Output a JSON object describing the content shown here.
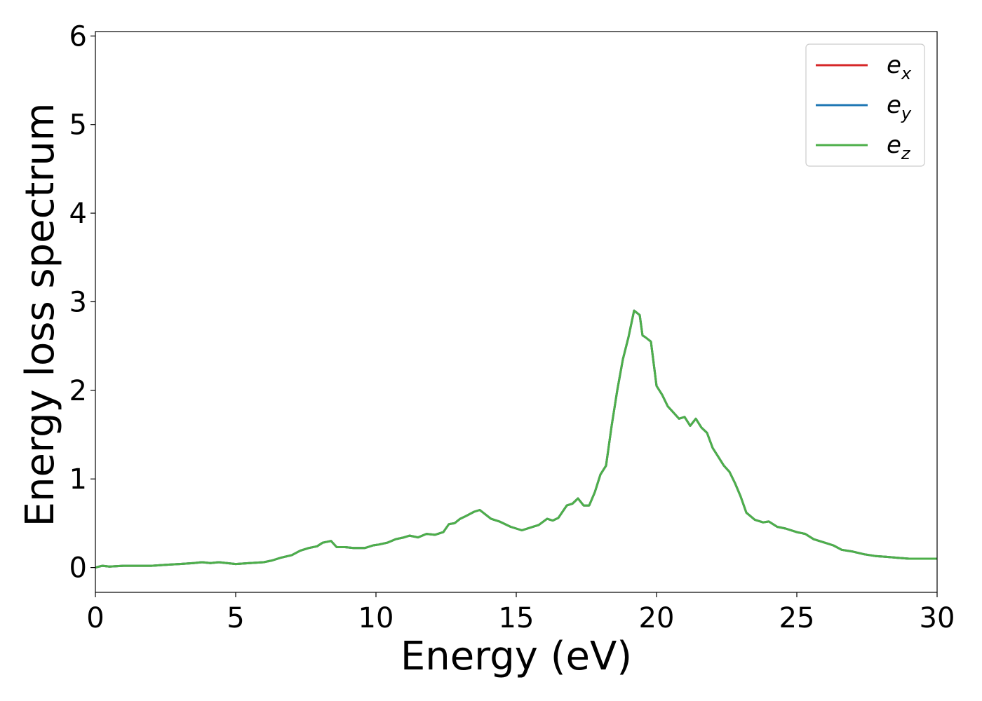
{
  "chart_data": {
    "type": "line",
    "xlabel": "Energy (eV)",
    "ylabel": "Energy loss spectrum",
    "xlim": [
      0,
      30
    ],
    "ylim": [
      -0.28,
      6.05
    ],
    "xticks": [
      0,
      5,
      10,
      15,
      20,
      25,
      30
    ],
    "xtick_labels": [
      "0",
      "5",
      "10",
      "15",
      "20",
      "25",
      "30"
    ],
    "yticks": [
      0,
      1,
      2,
      3,
      4,
      5,
      6
    ],
    "ytick_labels": [
      "0",
      "1",
      "2",
      "3",
      "4",
      "5",
      "6"
    ],
    "grid": false,
    "legend_position": "top-right",
    "x": [
      0,
      0.25,
      0.5,
      1,
      1.5,
      2,
      2.5,
      3,
      3.5,
      3.8,
      4.1,
      4.4,
      5,
      5.5,
      6,
      6.3,
      6.6,
      7,
      7.3,
      7.6,
      7.9,
      8.1,
      8.4,
      8.6,
      8.9,
      9.2,
      9.6,
      9.9,
      10.1,
      10.4,
      10.7,
      11,
      11.2,
      11.5,
      11.8,
      12.1,
      12.4,
      12.6,
      12.8,
      13,
      13.2,
      13.5,
      13.7,
      13.9,
      14.1,
      14.4,
      14.8,
      15.2,
      15.5,
      15.8,
      16.1,
      16.3,
      16.5,
      16.8,
      17,
      17.2,
      17.4,
      17.6,
      17.8,
      18,
      18.2,
      18.4,
      18.6,
      18.8,
      19,
      19.2,
      19.4,
      19.5,
      19.6,
      19.8,
      20,
      20.2,
      20.4,
      20.6,
      20.8,
      21,
      21.2,
      21.4,
      21.6,
      21.8,
      22,
      22.2,
      22.4,
      22.6,
      22.8,
      23,
      23.2,
      23.5,
      23.8,
      24,
      24.3,
      24.6,
      25,
      25.3,
      25.6,
      26,
      26.3,
      26.6,
      27,
      27.4,
      27.8,
      28.2,
      28.6,
      29,
      29.5,
      30
    ],
    "series": [
      {
        "name": "e_x",
        "color": "#d62728",
        "y": [
          0,
          0.02,
          0.01,
          0.02,
          0.02,
          0.02,
          0.03,
          0.04,
          0.05,
          0.06,
          0.05,
          0.06,
          0.04,
          0.05,
          0.06,
          0.08,
          0.11,
          0.14,
          0.19,
          0.22,
          0.24,
          0.28,
          0.3,
          0.23,
          0.23,
          0.22,
          0.22,
          0.25,
          0.26,
          0.28,
          0.32,
          0.34,
          0.36,
          0.34,
          0.38,
          0.37,
          0.4,
          0.49,
          0.5,
          0.55,
          0.58,
          0.63,
          0.65,
          0.6,
          0.55,
          0.52,
          0.46,
          0.42,
          0.45,
          0.48,
          0.55,
          0.53,
          0.56,
          0.7,
          0.72,
          0.78,
          0.7,
          0.7,
          0.85,
          1.05,
          1.15,
          1.6,
          2.0,
          2.35,
          2.6,
          2.9,
          2.85,
          2.62,
          2.6,
          2.55,
          2.05,
          1.95,
          1.82,
          1.75,
          1.68,
          1.7,
          1.6,
          1.68,
          1.58,
          1.52,
          1.35,
          1.25,
          1.15,
          1.08,
          0.95,
          0.8,
          0.62,
          0.54,
          0.51,
          0.52,
          0.46,
          0.44,
          0.4,
          0.38,
          0.32,
          0.28,
          0.25,
          0.2,
          0.18,
          0.15,
          0.13,
          0.12,
          0.11,
          0.1,
          0.1,
          0.1
        ]
      },
      {
        "name": "e_y",
        "color": "#1f77b4",
        "y": [
          0,
          0.02,
          0.01,
          0.02,
          0.02,
          0.02,
          0.03,
          0.04,
          0.05,
          0.06,
          0.05,
          0.06,
          0.04,
          0.05,
          0.06,
          0.08,
          0.11,
          0.14,
          0.19,
          0.22,
          0.24,
          0.28,
          0.3,
          0.23,
          0.23,
          0.22,
          0.22,
          0.25,
          0.26,
          0.28,
          0.32,
          0.34,
          0.36,
          0.34,
          0.38,
          0.37,
          0.4,
          0.49,
          0.5,
          0.55,
          0.58,
          0.63,
          0.65,
          0.6,
          0.55,
          0.52,
          0.46,
          0.42,
          0.45,
          0.48,
          0.55,
          0.53,
          0.56,
          0.7,
          0.72,
          0.78,
          0.7,
          0.7,
          0.85,
          1.05,
          1.15,
          1.6,
          2.0,
          2.35,
          2.6,
          2.9,
          2.85,
          2.62,
          2.6,
          2.55,
          2.05,
          1.95,
          1.82,
          1.75,
          1.68,
          1.7,
          1.6,
          1.68,
          1.58,
          1.52,
          1.35,
          1.25,
          1.15,
          1.08,
          0.95,
          0.8,
          0.62,
          0.54,
          0.51,
          0.52,
          0.46,
          0.44,
          0.4,
          0.38,
          0.32,
          0.28,
          0.25,
          0.2,
          0.18,
          0.15,
          0.13,
          0.12,
          0.11,
          0.1,
          0.1,
          0.1
        ]
      },
      {
        "name": "e_z",
        "color": "#4daf4a",
        "y": [
          0,
          0.02,
          0.01,
          0.02,
          0.02,
          0.02,
          0.03,
          0.04,
          0.05,
          0.06,
          0.05,
          0.06,
          0.04,
          0.05,
          0.06,
          0.08,
          0.11,
          0.14,
          0.19,
          0.22,
          0.24,
          0.28,
          0.3,
          0.23,
          0.23,
          0.22,
          0.22,
          0.25,
          0.26,
          0.28,
          0.32,
          0.34,
          0.36,
          0.34,
          0.38,
          0.37,
          0.4,
          0.49,
          0.5,
          0.55,
          0.58,
          0.63,
          0.65,
          0.6,
          0.55,
          0.52,
          0.46,
          0.42,
          0.45,
          0.48,
          0.55,
          0.53,
          0.56,
          0.7,
          0.72,
          0.78,
          0.7,
          0.7,
          0.85,
          1.05,
          1.15,
          1.6,
          2.0,
          2.35,
          2.6,
          2.9,
          2.85,
          2.62,
          2.6,
          2.55,
          2.05,
          1.95,
          1.82,
          1.75,
          1.68,
          1.7,
          1.6,
          1.68,
          1.58,
          1.52,
          1.35,
          1.25,
          1.15,
          1.08,
          0.95,
          0.8,
          0.62,
          0.54,
          0.51,
          0.52,
          0.46,
          0.44,
          0.4,
          0.38,
          0.32,
          0.28,
          0.25,
          0.2,
          0.18,
          0.15,
          0.13,
          0.12,
          0.11,
          0.1,
          0.1,
          0.1
        ]
      }
    ],
    "legend": [
      {
        "base": "e",
        "sub": "x",
        "color": "#d62728"
      },
      {
        "base": "e",
        "sub": "y",
        "color": "#1f77b4"
      },
      {
        "base": "e",
        "sub": "z",
        "color": "#4daf4a"
      }
    ]
  }
}
